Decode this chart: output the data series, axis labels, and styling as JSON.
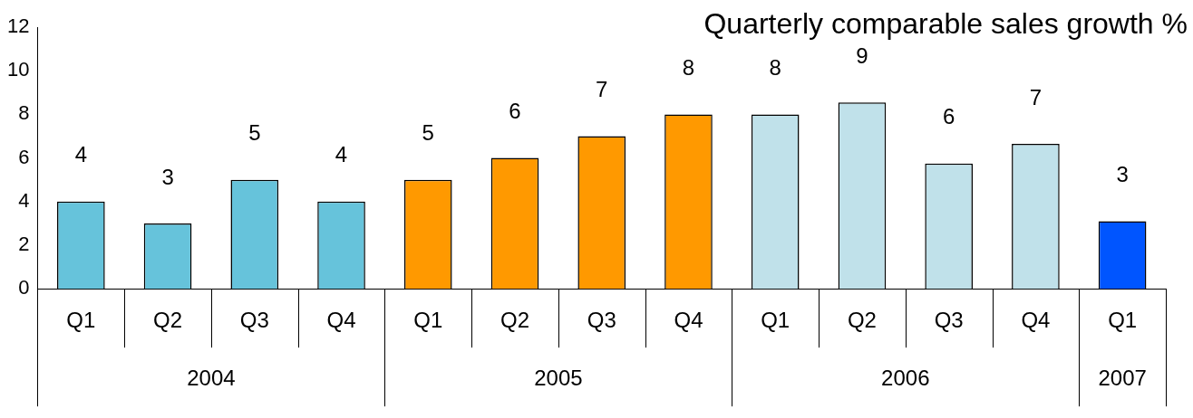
{
  "chart_data": {
    "type": "bar",
    "title": "Quarterly comparable sales growth %",
    "categories": [
      "Q1",
      "Q2",
      "Q3",
      "Q4",
      "Q1",
      "Q2",
      "Q3",
      "Q4",
      "Q1",
      "Q2",
      "Q3",
      "Q4",
      "Q1"
    ],
    "values": [
      4,
      3,
      5,
      4,
      5,
      6,
      7,
      8,
      8,
      8.55,
      5.75,
      6.65,
      3.1
    ],
    "value_labels": [
      "4",
      "3",
      "5",
      "4",
      "5",
      "6",
      "7",
      "8",
      "8",
      "9",
      "6",
      "7",
      "3"
    ],
    "colors": [
      "#66c3db",
      "#66c3db",
      "#66c3db",
      "#66c3db",
      "#ff9900",
      "#ff9900",
      "#ff9900",
      "#ff9900",
      "#c0e1ea",
      "#c0e1ea",
      "#c0e1ea",
      "#c0e1ea",
      "#0055ff"
    ],
    "annotations": [
      "2004",
      "2005",
      "2006",
      "2007"
    ],
    "ylim": [
      0,
      12
    ],
    "yticks": [
      0,
      2,
      4,
      6,
      8,
      10,
      12
    ],
    "grid": false,
    "legend": false
  }
}
